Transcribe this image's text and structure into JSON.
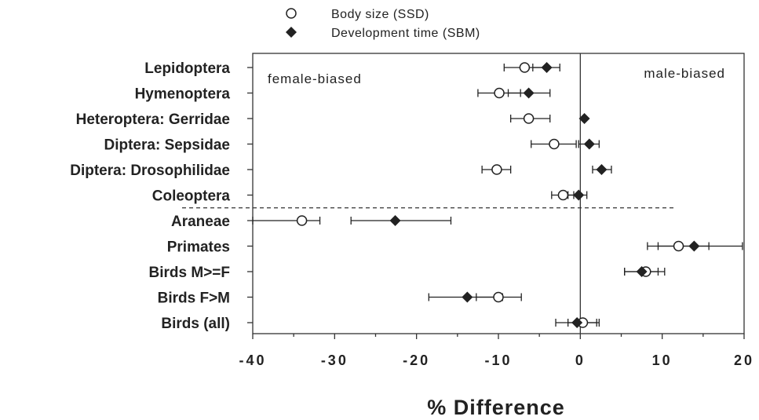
{
  "chart_data": {
    "type": "scatter",
    "xlabel": "% Difference",
    "xlim": [
      -40,
      20
    ],
    "xticks": [
      -40,
      -30,
      -20,
      -10,
      0,
      10,
      20
    ],
    "xtick_labels": [
      "-40",
      "-30",
      "-20",
      "-10",
      "0",
      "10",
      "20"
    ],
    "categories": [
      "Lepidoptera",
      "Hymenoptera",
      "Heteroptera: Gerridae",
      "Diptera: Sepsidae",
      "Diptera: Drosophilidae",
      "Coleoptera",
      "Araneae",
      "Primates",
      "Birds M>=F",
      "Birds F>M",
      "Birds (all)"
    ],
    "annotations": {
      "left": "female-biased",
      "right": "male-biased"
    },
    "reference_line_x": 0,
    "separator_after_index": 5,
    "legend_position": "top-center",
    "series": [
      {
        "name": "Body size (SSD)",
        "marker": "open-circle",
        "values": [
          -6.8,
          -9.9,
          -6.3,
          -3.2,
          -10.2,
          -2.1,
          -34.0,
          12.0,
          8.0,
          -10.0,
          0.3
        ],
        "error_low": [
          -9.3,
          -12.5,
          -8.5,
          -6.0,
          -12.0,
          -3.5,
          -40.0,
          8.2,
          5.4,
          -12.7,
          -3.0
        ],
        "error_high": [
          -4.2,
          -7.3,
          -3.7,
          -0.5,
          -8.5,
          -0.8,
          -31.8,
          15.7,
          10.3,
          -7.2,
          2.3
        ]
      },
      {
        "name": "Development time (SBM)",
        "marker": "filled-diamond",
        "values": [
          -4.1,
          -6.3,
          0.5,
          1.1,
          2.6,
          -0.2,
          -22.6,
          13.9,
          7.5,
          -13.8,
          -0.4
        ],
        "error_low": [
          -5.8,
          -8.8,
          0.5,
          -0.2,
          1.5,
          -1.5,
          -28.0,
          9.5,
          5.4,
          -18.5,
          -1.5
        ],
        "error_high": [
          -2.5,
          -3.7,
          0.5,
          2.3,
          3.8,
          0.8,
          -15.8,
          19.8,
          9.5,
          -9.5,
          2.0
        ]
      }
    ],
    "colors": {
      "marker": "#222222",
      "separator": "#333333"
    }
  }
}
